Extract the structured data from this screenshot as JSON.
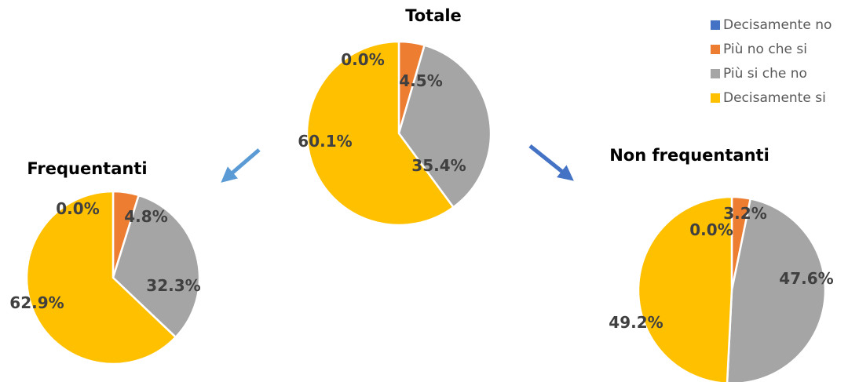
{
  "chart_data": [
    {
      "type": "pie",
      "title": "Totale",
      "categories": [
        "Decisamente no",
        "Più no che si",
        "Più si che no",
        "Decisamente si"
      ],
      "values": [
        0.0,
        4.5,
        35.4,
        60.1
      ],
      "labels": [
        "0.0%",
        "4.5%",
        "35.4%",
        "60.1%"
      ]
    },
    {
      "type": "pie",
      "title": "Frequentanti",
      "categories": [
        "Decisamente no",
        "Più no che si",
        "Più si che no",
        "Decisamente si"
      ],
      "values": [
        0.0,
        4.8,
        32.3,
        62.9
      ],
      "labels": [
        "0.0%",
        "4.8%",
        "32.3%",
        "62.9%"
      ]
    },
    {
      "type": "pie",
      "title": "Non frequentanti",
      "categories": [
        "Decisamente no",
        "Più no che si",
        "Più si che no",
        "Decisamente si"
      ],
      "values": [
        0.0,
        3.2,
        47.6,
        49.2
      ],
      "labels": [
        "0.0%",
        "3.2%",
        "47.6%",
        "49.2%"
      ]
    }
  ],
  "legend": {
    "placement": "top-right",
    "items": [
      {
        "label": "Decisamente no",
        "color": "#4472c4"
      },
      {
        "label": "Più no che si",
        "color": "#ed7d31"
      },
      {
        "label": "Più si che no",
        "color": "#a5a5a5"
      },
      {
        "label": "Decisamente si",
        "color": "#ffc000"
      }
    ]
  },
  "arrows": [
    {
      "name": "arrow-to-frequentanti",
      "color": "#5b9bd5"
    },
    {
      "name": "arrow-to-non-frequentanti",
      "color": "#4472c4"
    }
  ]
}
